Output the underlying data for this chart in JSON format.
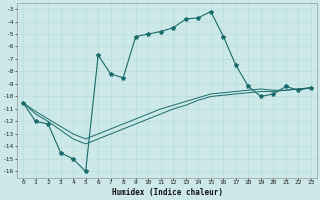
{
  "xlabel": "Humidex (Indice chaleur)",
  "bg_color": "#cce8e8",
  "line_color": "#1a6b6b",
  "xlim": [
    -0.5,
    23.5
  ],
  "ylim": [
    -16.5,
    -2.5
  ],
  "xticks": [
    0,
    1,
    2,
    3,
    4,
    5,
    6,
    7,
    8,
    9,
    10,
    11,
    12,
    13,
    14,
    15,
    16,
    17,
    18,
    19,
    20,
    21,
    22,
    23
  ],
  "yticks": [
    -3,
    -4,
    -5,
    -6,
    -7,
    -8,
    -9,
    -10,
    -11,
    -12,
    -13,
    -14,
    -15,
    -16
  ],
  "main_x": [
    0,
    1,
    2,
    3,
    4,
    5,
    6,
    7,
    8,
    9,
    10,
    11,
    12,
    13,
    14,
    15,
    16,
    17,
    18,
    19,
    20,
    21,
    22,
    23
  ],
  "main_y": [
    -10.5,
    -12,
    -12.2,
    -14.5,
    -15,
    -16,
    -6.7,
    -8.2,
    -8.5,
    -5.2,
    -5,
    -4.8,
    -4.5,
    -3.8,
    -3.7,
    -3.2,
    -5.2,
    -7.5,
    -9.2,
    -10,
    -9.8,
    -9.2,
    -9.5,
    -9.3
  ],
  "line2_x": [
    0,
    1,
    2,
    3,
    4,
    5,
    6,
    7,
    8,
    9,
    10,
    11,
    12,
    13,
    14,
    15,
    16,
    17,
    18,
    19,
    20,
    21,
    22,
    23
  ],
  "line2_y": [
    -10.5,
    -11.2,
    -11.8,
    -12.4,
    -13.0,
    -13.4,
    -13.0,
    -12.6,
    -12.2,
    -11.8,
    -11.4,
    -11.0,
    -10.7,
    -10.4,
    -10.1,
    -9.8,
    -9.7,
    -9.6,
    -9.5,
    -9.4,
    -9.5,
    -9.5,
    -9.4,
    -9.3
  ],
  "line3_x": [
    0,
    1,
    2,
    3,
    4,
    5,
    6,
    7,
    8,
    9,
    10,
    11,
    12,
    13,
    14,
    15,
    16,
    17,
    18,
    19,
    20,
    21,
    22,
    23
  ],
  "line3_y": [
    -10.5,
    -11.4,
    -12.0,
    -12.7,
    -13.4,
    -13.8,
    -13.4,
    -13.0,
    -12.6,
    -12.2,
    -11.8,
    -11.4,
    -11.0,
    -10.7,
    -10.3,
    -10.0,
    -9.9,
    -9.8,
    -9.7,
    -9.6,
    -9.6,
    -9.5,
    -9.4,
    -9.3
  ]
}
